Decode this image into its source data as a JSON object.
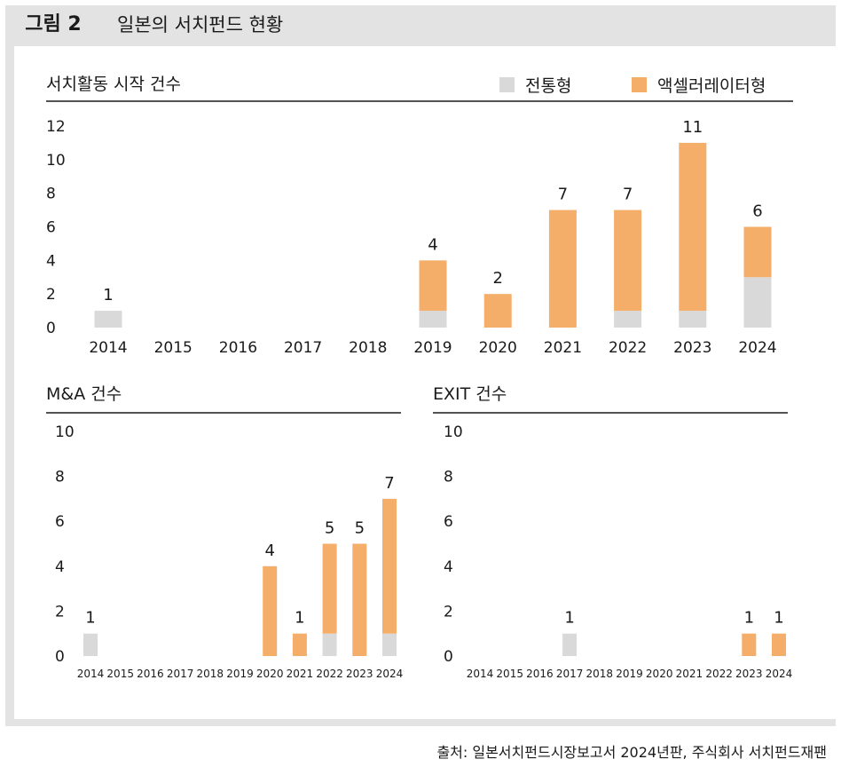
{
  "figure": {
    "tag": "그림 2",
    "title": "일본의 서치펀드 현황",
    "source": "출처: 일본서치펀드시장보고서 2024년판, 주식회사 서치펀드재팬"
  },
  "colors": {
    "traditional": "#d9d9d9",
    "accelerator": "#f5ae69"
  },
  "chart_data": [
    {
      "type": "bar",
      "stacked": true,
      "title": "서치활동 시작 건수",
      "categories": [
        "2014",
        "2015",
        "2016",
        "2017",
        "2018",
        "2019",
        "2020",
        "2021",
        "2022",
        "2023",
        "2024"
      ],
      "series": [
        {
          "name": "전통형",
          "values": [
            1,
            0,
            0,
            0,
            0,
            1,
            0,
            0,
            1,
            1,
            3
          ]
        },
        {
          "name": "액셀러레이터형",
          "values": [
            0,
            0,
            0,
            0,
            0,
            3,
            2,
            7,
            6,
            10,
            3
          ]
        }
      ],
      "totals": [
        1,
        null,
        null,
        null,
        null,
        4,
        2,
        7,
        7,
        11,
        6
      ],
      "yticks": [
        0,
        2,
        4,
        6,
        8,
        10,
        12
      ],
      "ylim": [
        0,
        12
      ],
      "legend": "top-right"
    },
    {
      "type": "bar",
      "stacked": true,
      "title": "M&A 건수",
      "categories": [
        "2014",
        "2015",
        "2016",
        "2017",
        "2018",
        "2019",
        "2020",
        "2021",
        "2022",
        "2023",
        "2024"
      ],
      "series": [
        {
          "name": "전통형",
          "values": [
            1,
            0,
            0,
            0,
            0,
            0,
            0,
            0,
            1,
            0,
            1
          ]
        },
        {
          "name": "액셀러레이터형",
          "values": [
            0,
            0,
            0,
            0,
            0,
            0,
            4,
            1,
            4,
            5,
            6
          ]
        }
      ],
      "totals": [
        1,
        null,
        null,
        null,
        null,
        null,
        4,
        1,
        5,
        5,
        7
      ],
      "yticks": [
        0,
        2,
        4,
        6,
        8,
        10
      ],
      "ylim": [
        0,
        10
      ]
    },
    {
      "type": "bar",
      "stacked": true,
      "title": "EXIT 건수",
      "categories": [
        "2014",
        "2015",
        "2016",
        "2017",
        "2018",
        "2019",
        "2020",
        "2021",
        "2022",
        "2023",
        "2024"
      ],
      "series": [
        {
          "name": "전통형",
          "values": [
            0,
            0,
            0,
            1,
            0,
            0,
            0,
            0,
            0,
            0,
            0
          ]
        },
        {
          "name": "액셀러레이터형",
          "values": [
            0,
            0,
            0,
            0,
            0,
            0,
            0,
            0,
            0,
            1,
            1
          ]
        }
      ],
      "totals": [
        null,
        null,
        null,
        1,
        null,
        null,
        null,
        null,
        null,
        1,
        1
      ],
      "yticks": [
        0,
        2,
        4,
        6,
        8,
        10
      ],
      "ylim": [
        0,
        10
      ]
    }
  ]
}
